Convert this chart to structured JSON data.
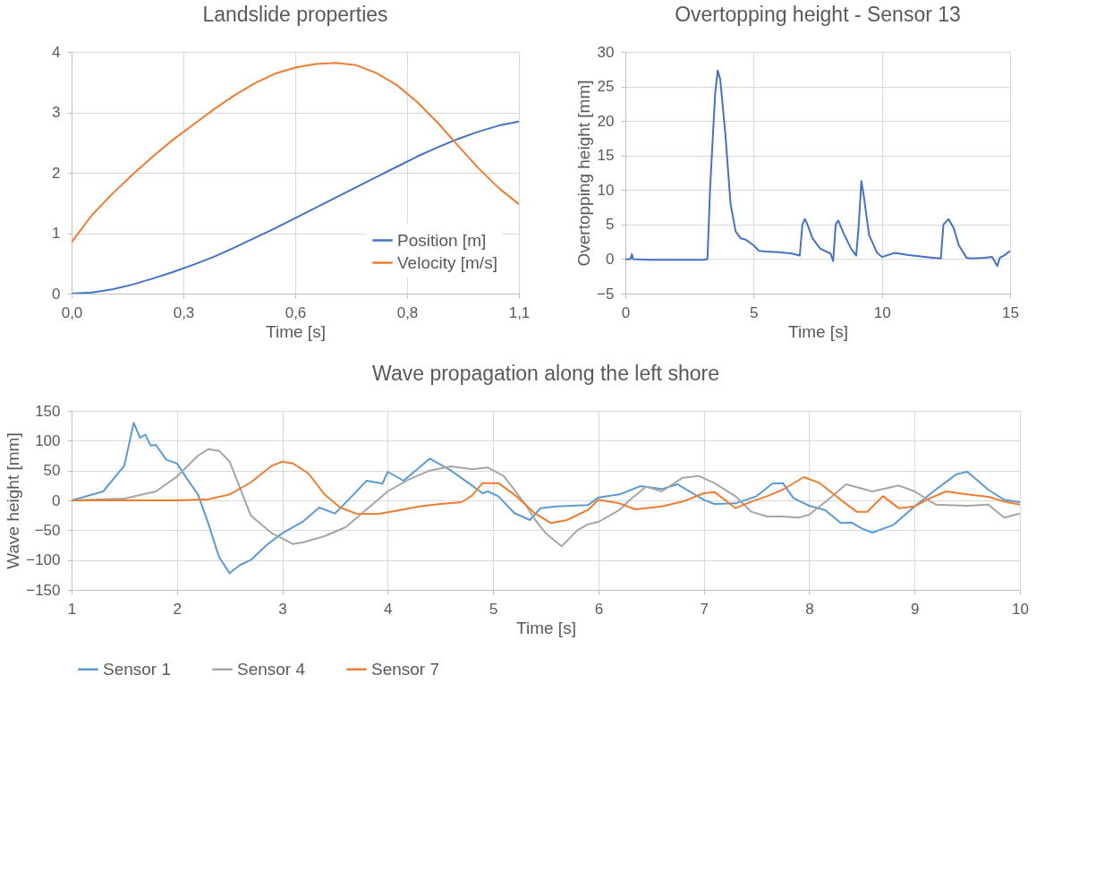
{
  "chart_data": [
    {
      "type": "line",
      "title": "Landslide properties",
      "xlabel": "Time [s]",
      "grid": true,
      "legend": "bottom right",
      "line_style": "solid",
      "xlim": [
        0,
        1.1
      ],
      "xticks": [
        {
          "value": 0,
          "label": "0,0"
        },
        {
          "value": 0.275,
          "label": "0,3"
        },
        {
          "value": 0.55,
          "label": "0,6"
        },
        {
          "value": 0.825,
          "label": "0,8"
        },
        {
          "value": 1.1,
          "label": "1,1"
        }
      ],
      "ylim": [
        0,
        4
      ],
      "yticks": [
        0,
        1,
        2,
        3,
        4
      ],
      "x": [
        0,
        0.05,
        0.1,
        0.15,
        0.2,
        0.25,
        0.3,
        0.35,
        0.4,
        0.45,
        0.5,
        0.55,
        0.6,
        0.65,
        0.7,
        0.75,
        0.8,
        0.85,
        0.9,
        0.95,
        1.0,
        1.05,
        1.1
      ],
      "series": [
        {
          "name": "Position [m]",
          "color": "#4472c4",
          "values": [
            0,
            0.02,
            0.07,
            0.15,
            0.25,
            0.36,
            0.48,
            0.61,
            0.76,
            0.92,
            1.08,
            1.25,
            1.42,
            1.59,
            1.76,
            1.93,
            2.1,
            2.27,
            2.42,
            2.56,
            2.68,
            2.78,
            2.85
          ]
        },
        {
          "name": "Velocity [m/s]",
          "color": "#ed7d31",
          "values": [
            0.85,
            1.3,
            1.65,
            1.97,
            2.27,
            2.55,
            2.8,
            3.05,
            3.28,
            3.48,
            3.64,
            3.74,
            3.8,
            3.82,
            3.78,
            3.65,
            3.45,
            3.17,
            2.83,
            2.45,
            2.08,
            1.75,
            1.48
          ]
        }
      ]
    },
    {
      "type": "line",
      "title": "Overtopping height - Sensor 13",
      "xlabel": "Time [s]",
      "ylabel": "Overtopping height [mm]",
      "grid": true,
      "line_style": "solid",
      "xlim": [
        0,
        15
      ],
      "xticks": [
        0,
        5,
        10,
        15
      ],
      "ylim": [
        -5,
        30
      ],
      "yticks": [
        -5,
        0,
        5,
        10,
        15,
        20,
        25,
        30
      ],
      "x": [
        0,
        0.2,
        0.25,
        0.3,
        1,
        2,
        3,
        3.2,
        3.3,
        3.5,
        3.6,
        3.7,
        3.9,
        4.1,
        4.3,
        4.5,
        4.7,
        5,
        5.2,
        5.5,
        6,
        6.5,
        6.8,
        6.9,
        7.0,
        7.1,
        7.3,
        7.6,
        8.0,
        8.1,
        8.2,
        8.3,
        8.5,
        8.8,
        9.0,
        9.1,
        9.2,
        9.3,
        9.5,
        9.8,
        10,
        10.5,
        11,
        12,
        12.3,
        12.4,
        12.6,
        12.8,
        13,
        13.3,
        13.5,
        14,
        14.3,
        14.5,
        14.6,
        14.8,
        15
      ],
      "series": [
        {
          "color": "#4472c4",
          "values": [
            0,
            0,
            0.7,
            0,
            -0.1,
            -0.1,
            -0.1,
            0,
            10,
            24,
            27.3,
            26,
            18,
            8,
            4,
            3,
            2.8,
            2,
            1.2,
            1.1,
            1,
            0.8,
            0.5,
            5,
            5.8,
            5,
            3,
            1.5,
            0.8,
            -0.3,
            5,
            5.6,
            3.8,
            1.5,
            0.5,
            5,
            11.3,
            9,
            3.5,
            1,
            0.3,
            0.9,
            0.6,
            0.2,
            0.1,
            5,
            5.8,
            4.5,
            2,
            0.2,
            0.1,
            0.2,
            0.3,
            -1,
            0.2,
            0.6,
            1.2
          ]
        }
      ]
    },
    {
      "type": "line",
      "title": "Wave propagation along the left shore",
      "xlabel": "Time [s]",
      "ylabel": "Wave height [mm]",
      "grid": true,
      "legend": "bottom",
      "line_style": "solid",
      "xlim": [
        1,
        10
      ],
      "xticks": [
        1,
        2,
        3,
        4,
        5,
        6,
        7,
        8,
        9,
        10
      ],
      "ylim": [
        -150,
        150
      ],
      "yticks": [
        -150,
        -100,
        -50,
        0,
        50,
        100,
        150
      ],
      "series": [
        {
          "name": "Sensor 1",
          "color": "#5b9bd5",
          "x": [
            1,
            1.3,
            1.5,
            1.59,
            1.65,
            1.7,
            1.75,
            1.8,
            1.9,
            2.0,
            2.1,
            2.2,
            2.3,
            2.4,
            2.5,
            2.6,
            2.7,
            2.85,
            3.0,
            3.2,
            3.35,
            3.5,
            3.65,
            3.8,
            3.95,
            4.0,
            4.15,
            4.3,
            4.4,
            4.6,
            4.8,
            4.9,
            4.95,
            5.05,
            5.2,
            5.35,
            5.45,
            5.6,
            5.9,
            6.0,
            6.2,
            6.4,
            6.6,
            6.75,
            7.0,
            7.1,
            7.3,
            7.5,
            7.65,
            7.75,
            7.85,
            8.0,
            8.15,
            8.3,
            8.4,
            8.5,
            8.6,
            8.8,
            9.0,
            9.2,
            9.4,
            9.5,
            9.7,
            9.85,
            10
          ],
          "values": [
            0,
            15,
            58,
            130,
            105,
            110,
            92,
            93,
            68,
            62,
            35,
            10,
            -40,
            -95,
            -122,
            -108,
            -100,
            -75,
            -55,
            -35,
            -12,
            -22,
            5,
            33,
            28,
            48,
            33,
            55,
            70,
            50,
            25,
            12,
            15,
            7,
            -21,
            -33,
            -13,
            -10,
            -8,
            5,
            10,
            24,
            19,
            27,
            1,
            -6,
            -5,
            7,
            28,
            29,
            4,
            -9,
            -16,
            -38,
            -37,
            -47,
            -54,
            -41,
            -10,
            18,
            44,
            48,
            18,
            1,
            -3
          ]
        },
        {
          "name": "Sensor 4",
          "color": "#a5a5a5",
          "x": [
            1,
            1.5,
            1.8,
            2.0,
            2.2,
            2.3,
            2.4,
            2.5,
            2.6,
            2.7,
            2.9,
            3.1,
            3.2,
            3.4,
            3.6,
            3.8,
            4.0,
            4.2,
            4.4,
            4.6,
            4.8,
            4.95,
            5.1,
            5.3,
            5.4,
            5.5,
            5.65,
            5.8,
            5.9,
            6.0,
            6.2,
            6.3,
            6.45,
            6.6,
            6.8,
            6.95,
            7.1,
            7.3,
            7.45,
            7.6,
            7.75,
            7.9,
            8.0,
            8.2,
            8.35,
            8.6,
            8.85,
            9.0,
            9.2,
            9.5,
            9.7,
            9.85,
            10
          ],
          "values": [
            0,
            3,
            15,
            40,
            75,
            86,
            83,
            65,
            20,
            -25,
            -55,
            -73,
            -70,
            -60,
            -45,
            -15,
            15,
            35,
            50,
            57,
            52,
            55,
            41,
            -5,
            -33,
            -55,
            -77,
            -50,
            -40,
            -36,
            -16,
            1,
            23,
            15,
            38,
            41,
            29,
            7,
            -19,
            -27,
            -27,
            -29,
            -24,
            4,
            27,
            15,
            25,
            15,
            -7,
            -9,
            -7,
            -29,
            -22
          ]
        },
        {
          "name": "Sensor 7",
          "color": "#ed7d31",
          "x": [
            1,
            2.0,
            2.3,
            2.5,
            2.7,
            2.9,
            3.0,
            3.1,
            3.25,
            3.4,
            3.55,
            3.7,
            3.9,
            4.1,
            4.3,
            4.5,
            4.7,
            4.8,
            4.9,
            5.05,
            5.2,
            5.4,
            5.55,
            5.7,
            5.9,
            6.0,
            6.2,
            6.35,
            6.6,
            6.8,
            7.0,
            7.1,
            7.2,
            7.3,
            7.45,
            7.6,
            7.75,
            7.95,
            8.1,
            8.3,
            8.45,
            8.55,
            8.7,
            8.85,
            9.0,
            9.15,
            9.3,
            9.5,
            9.7,
            9.85,
            10
          ],
          "values": [
            0,
            0,
            2,
            10,
            30,
            58,
            65,
            62,
            45,
            10,
            -12,
            -22,
            -23,
            -17,
            -10,
            -6,
            -3,
            8,
            29,
            29,
            10,
            -22,
            -38,
            -33,
            -16,
            1,
            -5,
            -15,
            -10,
            -2,
            12,
            14,
            1,
            -13,
            -2,
            7,
            18,
            39,
            29,
            1,
            -19,
            -19,
            7,
            -13,
            -10,
            4,
            15,
            10,
            6,
            -2,
            -7
          ]
        }
      ]
    }
  ]
}
